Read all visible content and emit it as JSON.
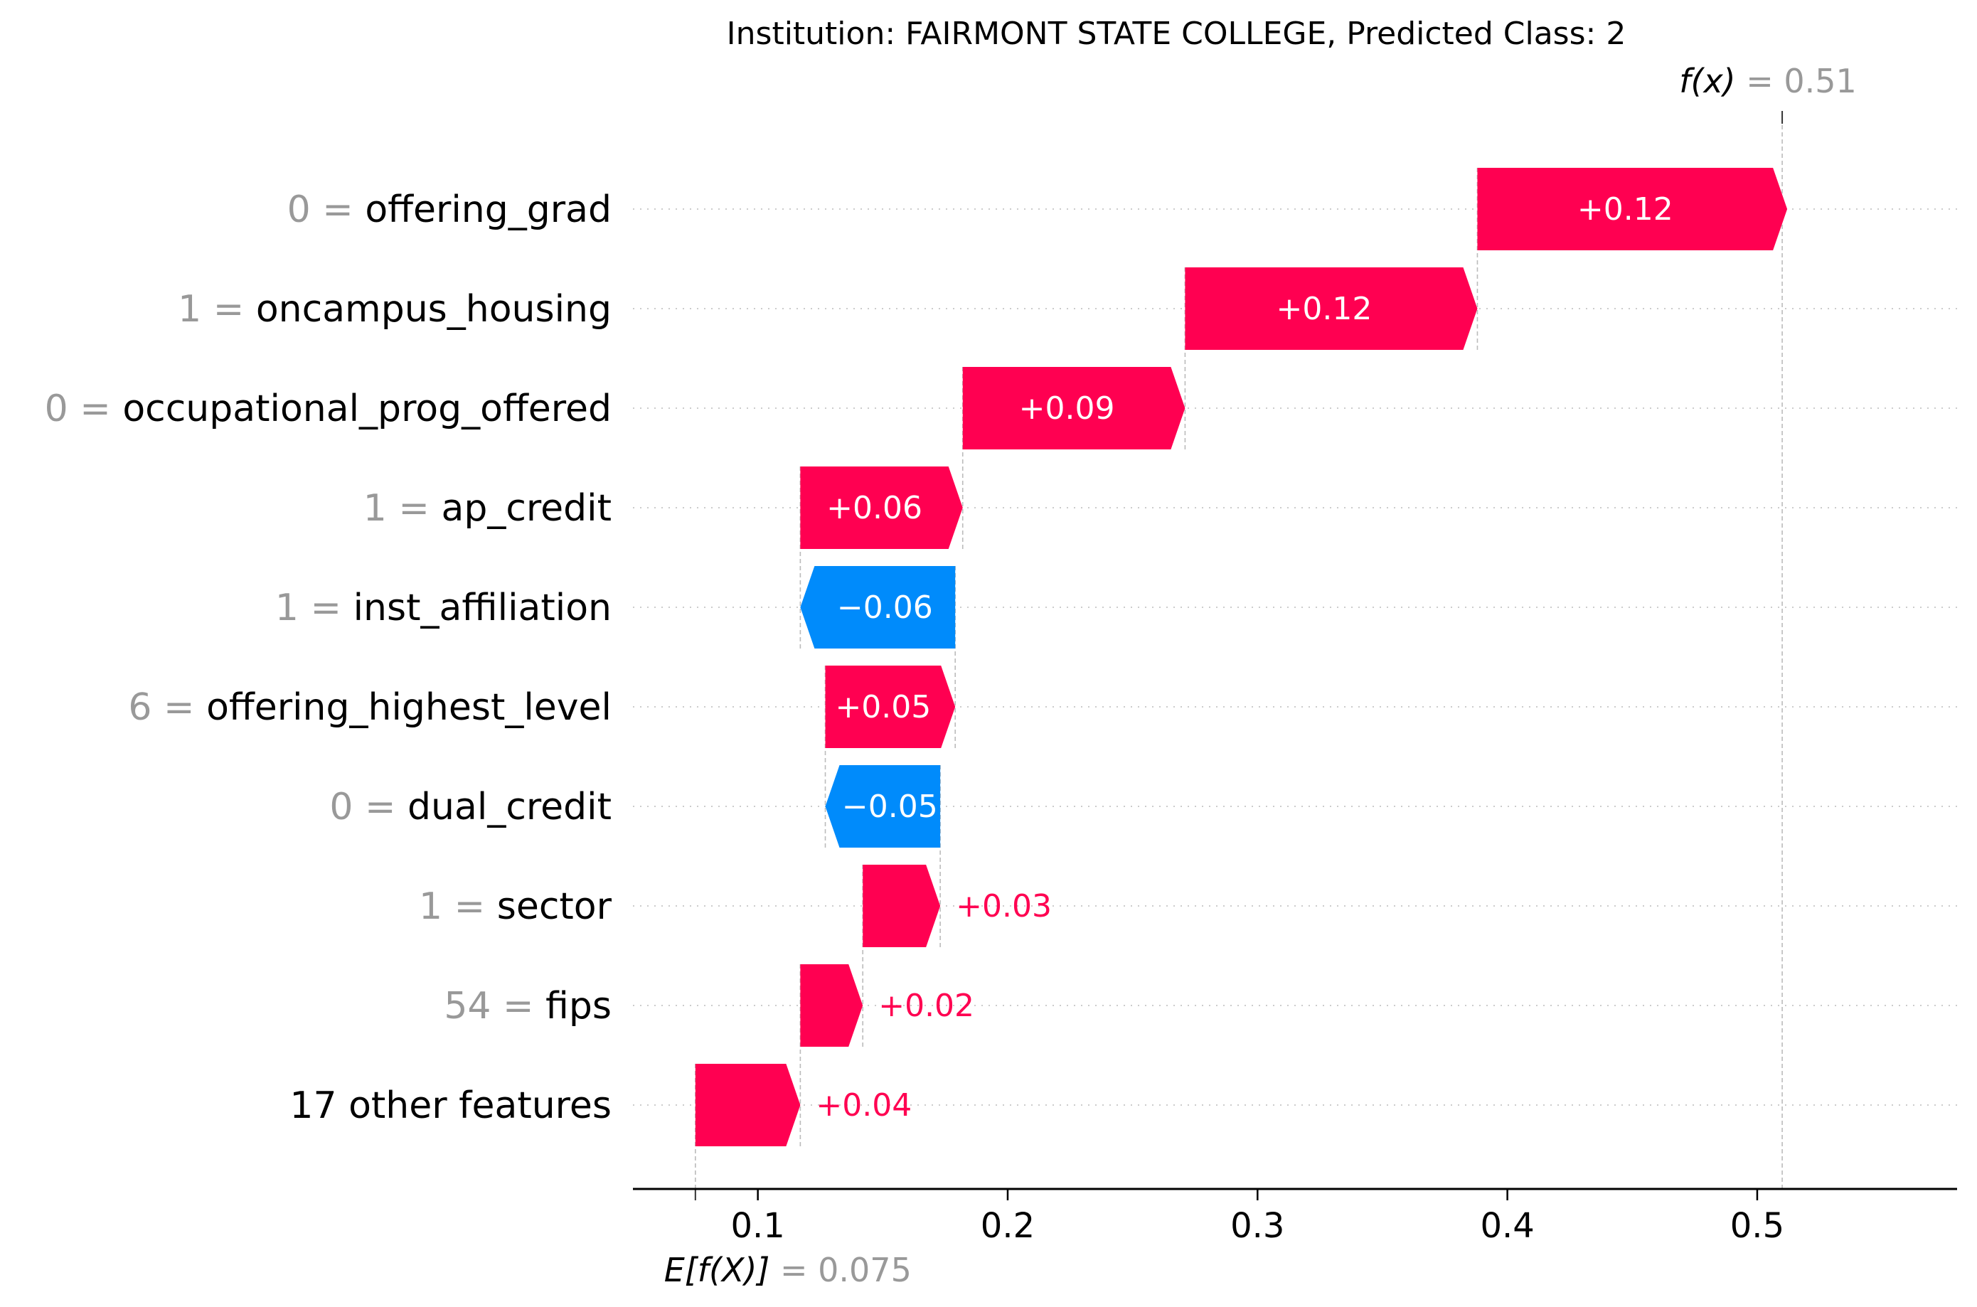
{
  "chart_data": {
    "type": "waterfall",
    "title": "Institution: FAIRMONT STATE COLLEGE, Predicted Class: 2",
    "base_value": 0.075,
    "base_label": {
      "prefix": "E[f(X)]",
      "value_text": "= 0.075"
    },
    "output_value": 0.51,
    "output_label": {
      "prefix": "f(x)",
      "value_text": "= 0.51"
    },
    "xlim": [
      0.05,
      0.58
    ],
    "xticks": [
      0.1,
      0.2,
      0.3,
      0.4,
      0.5
    ],
    "xtick_labels": [
      "0.1",
      "0.2",
      "0.3",
      "0.4",
      "0.5"
    ],
    "grid": "dotted-horizontal",
    "colors": {
      "positive": "#ff0051",
      "negative": "#008bfb",
      "feature_value": "#999999",
      "text": "#000000"
    },
    "features": [
      {
        "value": "0",
        "name": "offering_grad",
        "contribution": 0.124,
        "label": "+0.12"
      },
      {
        "value": "1",
        "name": "oncampus_housing",
        "contribution": 0.117,
        "label": "+0.12"
      },
      {
        "value": "0",
        "name": "occupational_prog_offered",
        "contribution": 0.089,
        "label": "+0.09"
      },
      {
        "value": "1",
        "name": "ap_credit",
        "contribution": 0.065,
        "label": "+0.06"
      },
      {
        "value": "1",
        "name": "inst_affiliation",
        "contribution": -0.062,
        "label": "−0.06"
      },
      {
        "value": "6",
        "name": "offering_highest_level",
        "contribution": 0.052,
        "label": "+0.05"
      },
      {
        "value": "0",
        "name": "dual_credit",
        "contribution": -0.046,
        "label": "−0.05"
      },
      {
        "value": "1",
        "name": "sector",
        "contribution": 0.031,
        "label": "+0.03"
      },
      {
        "value": "54",
        "name": "fips",
        "contribution": 0.025,
        "label": "+0.02"
      },
      {
        "value": "",
        "name": "17 other features",
        "contribution": 0.042,
        "label": "+0.04"
      }
    ]
  }
}
